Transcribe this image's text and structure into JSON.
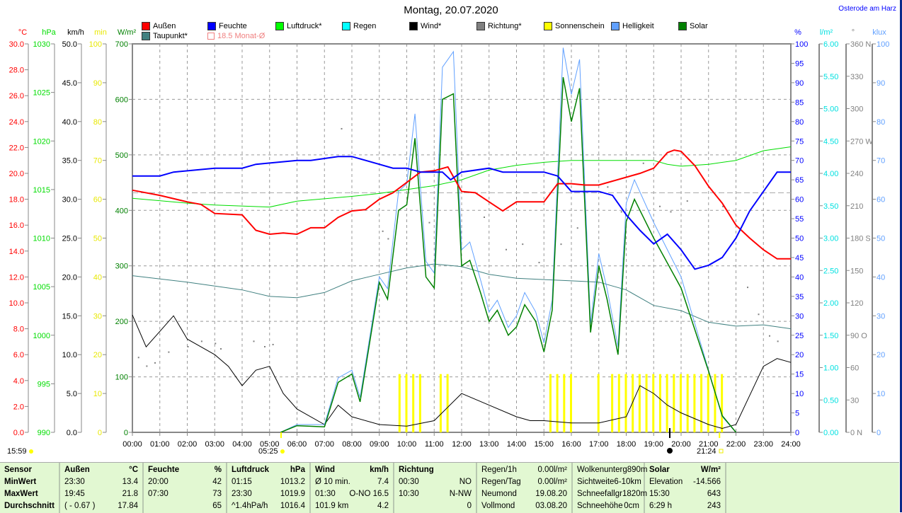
{
  "header": {
    "title": "Montag, 20.07.2020",
    "location": "Osterode am Harz"
  },
  "legend": [
    {
      "label": "Außen",
      "color": "#ff0000"
    },
    {
      "label": "Feuchte",
      "color": "#0000ff"
    },
    {
      "label": "Luftdruck*",
      "color": "#00ff00"
    },
    {
      "label": "Regen",
      "color": "#00ffff"
    },
    {
      "label": "Wind*",
      "color": "#000000"
    },
    {
      "label": "Richtung*",
      "color": "#808080"
    },
    {
      "label": "Sonnenschein",
      "color": "#ffff00"
    },
    {
      "label": "Helligkeit",
      "color": "#60a0ff"
    },
    {
      "label": "Solar",
      "color": "#008000"
    },
    {
      "label": "Taupunkt*",
      "color": "#408080"
    }
  ],
  "monthly_avg_label": "18.5 Monat-Ø",
  "sun": {
    "now": "15:59",
    "sunrise": "05:25",
    "sunset": "21:24"
  },
  "chart_data": {
    "type": "line",
    "title": "Montag, 20.07.2020",
    "x_ticks": [
      "00:00",
      "01:00",
      "02:00",
      "03:00",
      "04:00",
      "05:00",
      "06:00",
      "07:00",
      "08:00",
      "09:00",
      "10:00",
      "11:00",
      "12:00",
      "13:00",
      "14:00",
      "15:00",
      "16:00",
      "17:00",
      "18:00",
      "19:00",
      "20:00",
      "21:00",
      "22:00",
      "23:00",
      "24:00"
    ],
    "xlim": [
      0,
      24
    ],
    "axes": {
      "temp": {
        "unit": "°C",
        "color": "#ff0000",
        "min": 0,
        "max": 30,
        "step": 2,
        "dec": 1
      },
      "press": {
        "unit": "hPa",
        "color": "#00dd00",
        "min": 990,
        "max": 1030,
        "step": 5,
        "dec": 0
      },
      "wind": {
        "unit": "km/h",
        "color": "#000000",
        "min": 0,
        "max": 50,
        "step": 5,
        "dec": 1
      },
      "sunmin": {
        "unit": "min",
        "color": "#e8e800",
        "min": 0,
        "max": 100,
        "step": 10,
        "dec": 0
      },
      "solar": {
        "unit": "W/m²",
        "color": "#008000",
        "min": 0,
        "max": 700,
        "step": 100,
        "dec": 0
      },
      "hum": {
        "unit": "%",
        "color": "#0000ff",
        "min": 0,
        "max": 100,
        "step": 5,
        "dec": 0
      },
      "rain": {
        "unit": "l/m²",
        "color": "#00e0e0",
        "min": 0,
        "max": 6,
        "step": 0.5,
        "dec": 2
      },
      "dir": {
        "unit": "°",
        "color": "#808080",
        "min": 0,
        "max": 360,
        "step": 30,
        "dec": 0,
        "compass": {
          "0": "N",
          "90": "O",
          "180": "S",
          "270": "W",
          "360": "N"
        }
      },
      "lux": {
        "unit": "klux",
        "color": "#60a0ff",
        "min": 0,
        "max": 100,
        "step": 10,
        "dec": 0
      }
    },
    "monthly_avg_temp": 18.5,
    "series": [
      {
        "name": "Taupunkt*",
        "axis": "temp",
        "color": "#408080",
        "width": 1,
        "x": [
          0,
          2,
          4,
          5,
          6,
          7,
          8,
          9,
          10,
          11,
          12,
          13,
          14,
          15,
          16,
          17,
          18,
          19,
          20,
          21,
          22,
          23,
          24
        ],
        "y": [
          12.1,
          11.6,
          11.0,
          10.5,
          10.4,
          10.8,
          11.7,
          12.2,
          12.7,
          13.0,
          12.8,
          12.2,
          11.9,
          11.8,
          11.7,
          11.6,
          11.0,
          9.8,
          9.4,
          8.5,
          8.2,
          8.3,
          8.0
        ]
      },
      {
        "name": "Luftdruck*",
        "axis": "press",
        "color": "#00dd00",
        "width": 1,
        "x": [
          0,
          2,
          3,
          5,
          6,
          8,
          9,
          10,
          11,
          12,
          13,
          14,
          15,
          16,
          18,
          19,
          19.5,
          20,
          21,
          22,
          23,
          24
        ],
        "y": [
          1014.1,
          1013.6,
          1013.4,
          1013.2,
          1013.8,
          1014.3,
          1014.6,
          1015.0,
          1015.4,
          1016.0,
          1017.0,
          1017.5,
          1017.8,
          1018.0,
          1018.0,
          1018.0,
          1017.6,
          1017.4,
          1017.6,
          1018.0,
          1019.0,
          1019.4
        ]
      },
      {
        "name": "Wind*",
        "axis": "wind",
        "color": "#000000",
        "width": 1,
        "x": [
          0,
          0.5,
          1,
          1.5,
          2,
          2.5,
          3,
          3.5,
          4,
          4.5,
          5,
          5.5,
          6,
          7,
          7.5,
          8,
          9,
          10,
          11,
          12,
          13,
          14,
          14.5,
          15,
          16,
          17,
          18,
          18.5,
          19,
          19.5,
          20,
          21,
          21.5,
          22,
          23,
          23.5,
          24
        ],
        "y": [
          15.1,
          11,
          13,
          15,
          12,
          11,
          10,
          8.5,
          6,
          8,
          8.5,
          5,
          3,
          1,
          3.5,
          2,
          1,
          0.8,
          1.5,
          5,
          3.5,
          2,
          1.5,
          1.5,
          1.2,
          1.2,
          2,
          6,
          5,
          3.5,
          2.5,
          1,
          0.5,
          1,
          8.5,
          9.5,
          9
        ]
      },
      {
        "name": "Helligkeit",
        "axis": "lux",
        "color": "#60a0ff",
        "width": 1,
        "x": [
          5.4,
          6,
          7,
          7.5,
          8,
          8.3,
          9,
          9.3,
          9.7,
          10,
          10.3,
          10.7,
          11,
          11.3,
          11.7,
          12,
          12.3,
          12.7,
          13,
          13.3,
          13.7,
          14,
          14.3,
          14.7,
          15,
          15.3,
          15.7,
          16,
          16.3,
          16.7,
          17,
          17.3,
          17.7,
          18,
          18.3,
          19,
          20,
          21,
          21.5,
          22
        ],
        "y": [
          0,
          2,
          2,
          14,
          16,
          9,
          40,
          37,
          62,
          64,
          82,
          44,
          41,
          94,
          98,
          47,
          49,
          39,
          31,
          34,
          27,
          30,
          36,
          31,
          23,
          34,
          99,
          87,
          96,
          28,
          46,
          37,
          22,
          59,
          65,
          54,
          40,
          16,
          4,
          0
        ]
      },
      {
        "name": "Solar",
        "axis": "solar",
        "color": "#008000",
        "width": 1.5,
        "x": [
          5.4,
          6,
          7,
          7.5,
          8,
          8.3,
          9,
          9.3,
          9.7,
          10,
          10.3,
          10.7,
          11,
          11.3,
          11.7,
          12,
          12.3,
          12.7,
          13,
          13.3,
          13.7,
          14,
          14.3,
          14.7,
          15,
          15.3,
          15.7,
          16,
          16.3,
          16.7,
          17,
          17.3,
          17.7,
          18,
          18.3,
          19,
          20,
          21,
          21.5,
          22
        ],
        "y": [
          0,
          12,
          10,
          90,
          105,
          55,
          270,
          240,
          400,
          410,
          530,
          280,
          260,
          600,
          610,
          300,
          310,
          250,
          200,
          220,
          175,
          190,
          230,
          200,
          145,
          220,
          640,
          560,
          620,
          180,
          300,
          240,
          140,
          380,
          420,
          350,
          260,
          110,
          30,
          0
        ]
      },
      {
        "name": "Außen",
        "axis": "temp",
        "color": "#ff0000",
        "width": 2,
        "x": [
          0,
          1,
          2,
          2.5,
          3,
          4,
          4.5,
          5,
          5.5,
          6,
          6.5,
          7,
          7.5,
          8,
          8.5,
          9,
          9.5,
          10,
          10.5,
          11,
          11.5,
          12,
          12.5,
          13,
          13.5,
          14,
          15,
          15.5,
          16,
          16.5,
          17,
          17.5,
          18,
          18.5,
          19,
          19.5,
          19.75,
          20,
          20.5,
          21,
          21.5,
          22,
          22.5,
          23,
          23.5,
          24
        ],
        "y": [
          18.7,
          18.3,
          17.8,
          17.6,
          16.9,
          16.8,
          15.6,
          15.3,
          15.4,
          15.3,
          15.8,
          15.8,
          16.6,
          17.1,
          17.2,
          18.0,
          18.5,
          19.3,
          20.1,
          20.2,
          20.5,
          18.6,
          18.5,
          17.8,
          17.1,
          17.8,
          17.8,
          19.2,
          19.2,
          19.1,
          19.1,
          19.4,
          19.7,
          20.0,
          20.4,
          21.6,
          21.8,
          21.7,
          20.6,
          19.0,
          17.7,
          16.0,
          15.0,
          14.1,
          13.4,
          13.4
        ]
      },
      {
        "name": "Feuchte",
        "axis": "hum",
        "color": "#0000ff",
        "width": 2,
        "x": [
          0,
          1,
          1.5,
          3,
          4,
          4.5,
          6,
          6.5,
          7.5,
          8,
          8.5,
          9,
          9.5,
          10,
          10.5,
          11,
          11.3,
          11.6,
          12,
          13,
          13.5,
          15,
          15.5,
          16,
          16.5,
          17,
          17.5,
          18,
          18.5,
          19,
          19.5,
          20,
          20.5,
          21,
          21.5,
          22,
          22.5,
          23,
          23.5,
          24
        ],
        "y": [
          66,
          66,
          67,
          68,
          68,
          69,
          70,
          70,
          71,
          71,
          70,
          69,
          68,
          68,
          67,
          67,
          67,
          65,
          67,
          68,
          67,
          67,
          66,
          62,
          62,
          62,
          61,
          56,
          52,
          48.5,
          51,
          47,
          42,
          43,
          45,
          50,
          57,
          62,
          67,
          67
        ]
      }
    ],
    "sunshine": {
      "axis": "sunmin",
      "color": "#ffff00",
      "x": [
        9.75,
        10,
        10.25,
        10.5,
        11.25,
        11.5,
        15.25,
        15.5,
        15.75,
        16,
        17,
        17.5,
        17.75,
        18,
        18.25,
        18.5,
        18.75,
        19,
        19.25,
        19.5,
        19.75,
        20,
        20.25,
        20.5,
        20.75,
        21,
        21.25,
        21.5
      ],
      "value": 15
    },
    "direction": {
      "axis": "dir",
      "color": "#808080",
      "x": [
        0.2,
        0.5,
        0.8,
        1.3,
        2,
        2.5,
        3,
        3.2,
        4.4,
        4.8,
        5.1,
        7.6,
        9.1,
        9.3,
        10.8,
        12.8,
        13.6,
        14.2,
        14.8,
        15.6,
        16.2,
        17.3,
        17.8,
        18.6,
        19.2,
        19.6,
        20.2,
        21.5,
        22.4,
        22.8,
        23.2,
        23.5
      ],
      "y": [
        70,
        62,
        65,
        75,
        80,
        85,
        83,
        78,
        85,
        80,
        82,
        282,
        187,
        180,
        195,
        200,
        170,
        175,
        158,
        175,
        190,
        228,
        205,
        250,
        210,
        205,
        215,
        210,
        135,
        110,
        90,
        85
      ]
    }
  },
  "table": {
    "sensor": {
      "head": "Sensor",
      "rows": [
        "MinWert",
        "MaxWert",
        "Durchschnitt"
      ]
    },
    "aussen": {
      "head": "Außen",
      "unit": "°C",
      "rows": [
        [
          "23:30",
          "13.4"
        ],
        [
          "19:45",
          "21.8"
        ],
        [
          "( - 0.67 )",
          "17.84"
        ]
      ]
    },
    "feuchte": {
      "head": "Feuchte",
      "unit": "%",
      "rows": [
        [
          "20:00",
          "42"
        ],
        [
          "07:30",
          "73"
        ],
        [
          "",
          "65"
        ]
      ]
    },
    "luftdruck": {
      "head": "Luftdruck",
      "unit": "hPa",
      "rows": [
        [
          "01:15",
          "1013.2"
        ],
        [
          "23:30",
          "1019.9"
        ],
        [
          "^1.4hPa/h",
          "1016.4"
        ]
      ]
    },
    "wind": {
      "head": "Wind",
      "unit": "km/h",
      "rows": [
        [
          "Ø 10 min.",
          "7.4"
        ],
        [
          "01:30",
          "O-NO 16.5"
        ],
        [
          "101.9 km",
          "4.2"
        ]
      ]
    },
    "richtung": {
      "head": "Richtung",
      "rows": [
        [
          "00:30",
          "NO"
        ],
        [
          "10:30",
          "N-NW"
        ],
        [
          "",
          "0"
        ]
      ]
    },
    "regen": {
      "rows": [
        [
          "Regen/1h",
          "0.00l/m²"
        ],
        [
          "Regen/Tag",
          "0.00l/m²"
        ],
        [
          "Neumond",
          "19.08.20"
        ],
        [
          "Vollmond",
          "03.08.20"
        ]
      ]
    },
    "wolken": {
      "rows": [
        [
          "Wolkenunterg",
          "890m"
        ],
        [
          "Sichtweite",
          "6-10km"
        ],
        [
          "Schneefallgr",
          "1820m"
        ],
        [
          "Schneehöhe",
          "0cm"
        ]
      ]
    },
    "solar": {
      "head": "Solar",
      "unit": "W/m²",
      "rows": [
        [
          "Elevation",
          "-14.566"
        ],
        [
          "15:30",
          "643"
        ],
        [
          "6:29 h",
          "243"
        ]
      ]
    }
  }
}
